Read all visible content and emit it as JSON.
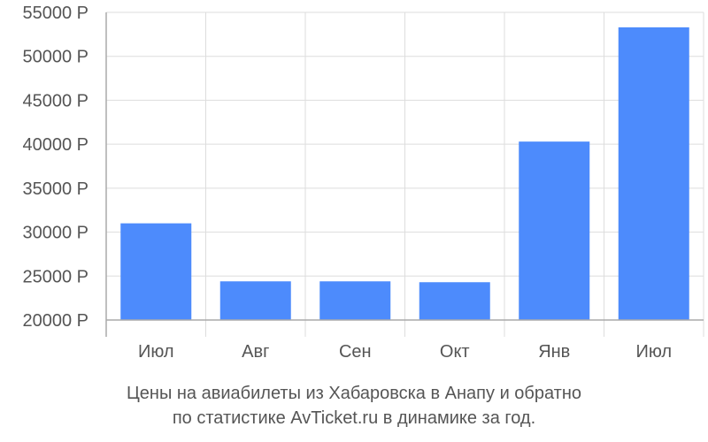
{
  "chart_data": {
    "type": "bar",
    "categories": [
      "Июл",
      "Авг",
      "Сен",
      "Окт",
      "Янв",
      "Июл"
    ],
    "values": [
      31000,
      24400,
      24400,
      24300,
      40300,
      53300
    ],
    "ylim": [
      20000,
      55000
    ],
    "yticks": [
      20000,
      25000,
      30000,
      35000,
      40000,
      45000,
      50000,
      55000
    ],
    "ytick_labels": [
      "20000 Р",
      "25000 Р",
      "30000 Р",
      "35000 Р",
      "40000 Р",
      "45000 Р",
      "50000 Р",
      "55000 Р"
    ],
    "grid": true,
    "bar_color": "#4d8bfc",
    "grid_color": "#dddddd",
    "axis_color": "#aaaaaa"
  },
  "caption": {
    "line1": "Цены на авиабилеты из Хабаровска в Анапу и обратно",
    "line2": "по статистике AvTicket.ru в динамике за год."
  }
}
